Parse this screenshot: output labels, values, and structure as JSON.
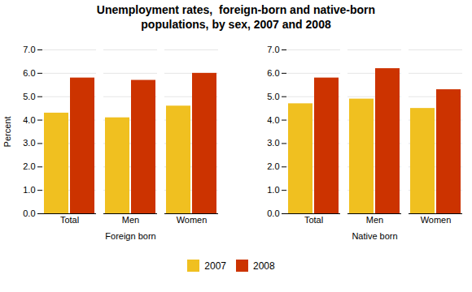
{
  "chart_data": {
    "type": "bar",
    "title": "Unemployment rates,  foreign-born and native-born\npopulations, by sex, 2007 and 2008",
    "ylabel": "Percent",
    "categories": [
      "Total",
      "Men",
      "Women",
      "Total",
      "Men",
      "Women"
    ],
    "groups": [
      "Foreign born",
      "Foreign born",
      "Foreign born",
      "Native born",
      "Native born",
      "Native born"
    ],
    "series": [
      {
        "name": "2007",
        "color": "#F0C020",
        "values": [
          4.3,
          4.1,
          4.6,
          4.7,
          4.9,
          4.5
        ]
      },
      {
        "name": "2008",
        "color": "#CC3300",
        "values": [
          5.8,
          5.7,
          6.0,
          5.8,
          6.2,
          5.3
        ]
      }
    ],
    "ylim": [
      0,
      7
    ],
    "yticks": [
      0,
      1,
      2,
      3,
      4,
      5,
      6,
      7
    ],
    "grid": true,
    "legend": "bottom"
  }
}
